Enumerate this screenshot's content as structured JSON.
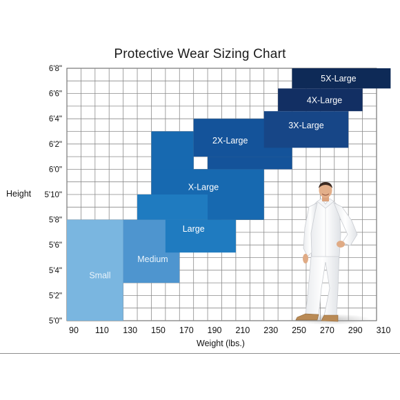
{
  "chart_data": {
    "type": "heatmap",
    "title": "Protective Wear Sizing Chart",
    "xlabel": "Weight (lbs.)",
    "ylabel": "Height",
    "xlim": [
      90,
      310
    ],
    "ylim": [
      "5'0\"",
      "6'8\""
    ],
    "x_ticks": [
      90,
      110,
      130,
      150,
      170,
      190,
      210,
      230,
      250,
      270,
      290,
      310
    ],
    "y_ticks": [
      "5'0\"",
      "5'2\"",
      "5'4\"",
      "5'6\"",
      "5'8\"",
      "5'10\"",
      "6'0\"",
      "6'2\"",
      "6'4\"",
      "6'6\"",
      "6'8\""
    ],
    "grid": true,
    "sizes": [
      {
        "label": "Small",
        "color": "#7ab6e0",
        "label_color": "#eaf4fb",
        "rects": [
          {
            "weight": [
              90,
              130
            ],
            "height_in": [
              60,
              68
            ]
          }
        ]
      },
      {
        "label": "Medium",
        "color": "#4e95cf",
        "label_color": "#eaf4fb",
        "rects": [
          {
            "weight": [
              130,
              170
            ],
            "height_in": [
              63,
              68
            ]
          }
        ]
      },
      {
        "label": "Large",
        "color": "#1f7bc0",
        "label_color": "#ffffff",
        "rects": [
          {
            "weight": [
              140,
              200
            ],
            "height_in": [
              68,
              70
            ]
          },
          {
            "weight": [
              160,
              210
            ],
            "height_in": [
              65.4,
              68
            ]
          }
        ]
      },
      {
        "label": "X-Large",
        "color": "#1769b0",
        "label_color": "#ffffff",
        "rects": [
          {
            "weight": [
              150,
              180
            ],
            "height_in": [
              70,
              75
            ]
          },
          {
            "weight": [
              150,
              230
            ],
            "height_in": [
              72,
              70
            ]
          },
          {
            "weight": [
              190,
              230
            ],
            "height_in": [
              68,
              70
            ]
          }
        ]
      },
      {
        "label": "2X-Large",
        "color": "#14539a",
        "label_color": "#ffffff",
        "rects": [
          {
            "weight": [
              180,
              250
            ],
            "height_in": [
              73,
              76
            ]
          },
          {
            "weight": [
              190,
              250
            ],
            "height_in": [
              72,
              73
            ]
          }
        ]
      },
      {
        "label": "3X-Large",
        "color": "#174687",
        "label_color": "#ffffff",
        "rects": [
          {
            "weight": [
              230,
              290
            ],
            "height_in": [
              73.7,
              76.6
            ]
          }
        ]
      },
      {
        "label": "4X-Large",
        "color": "#122f63",
        "label_color": "#ffffff",
        "rects": [
          {
            "weight": [
              240,
              300
            ],
            "height_in": [
              76.6,
              78.4
            ]
          }
        ]
      },
      {
        "label": "5X-Large",
        "color": "#0e2a57",
        "label_color": "#ffffff",
        "rects": [
          {
            "weight": [
              250,
              320
            ],
            "height_in": [
              78.4,
              80
            ]
          }
        ]
      }
    ]
  }
}
